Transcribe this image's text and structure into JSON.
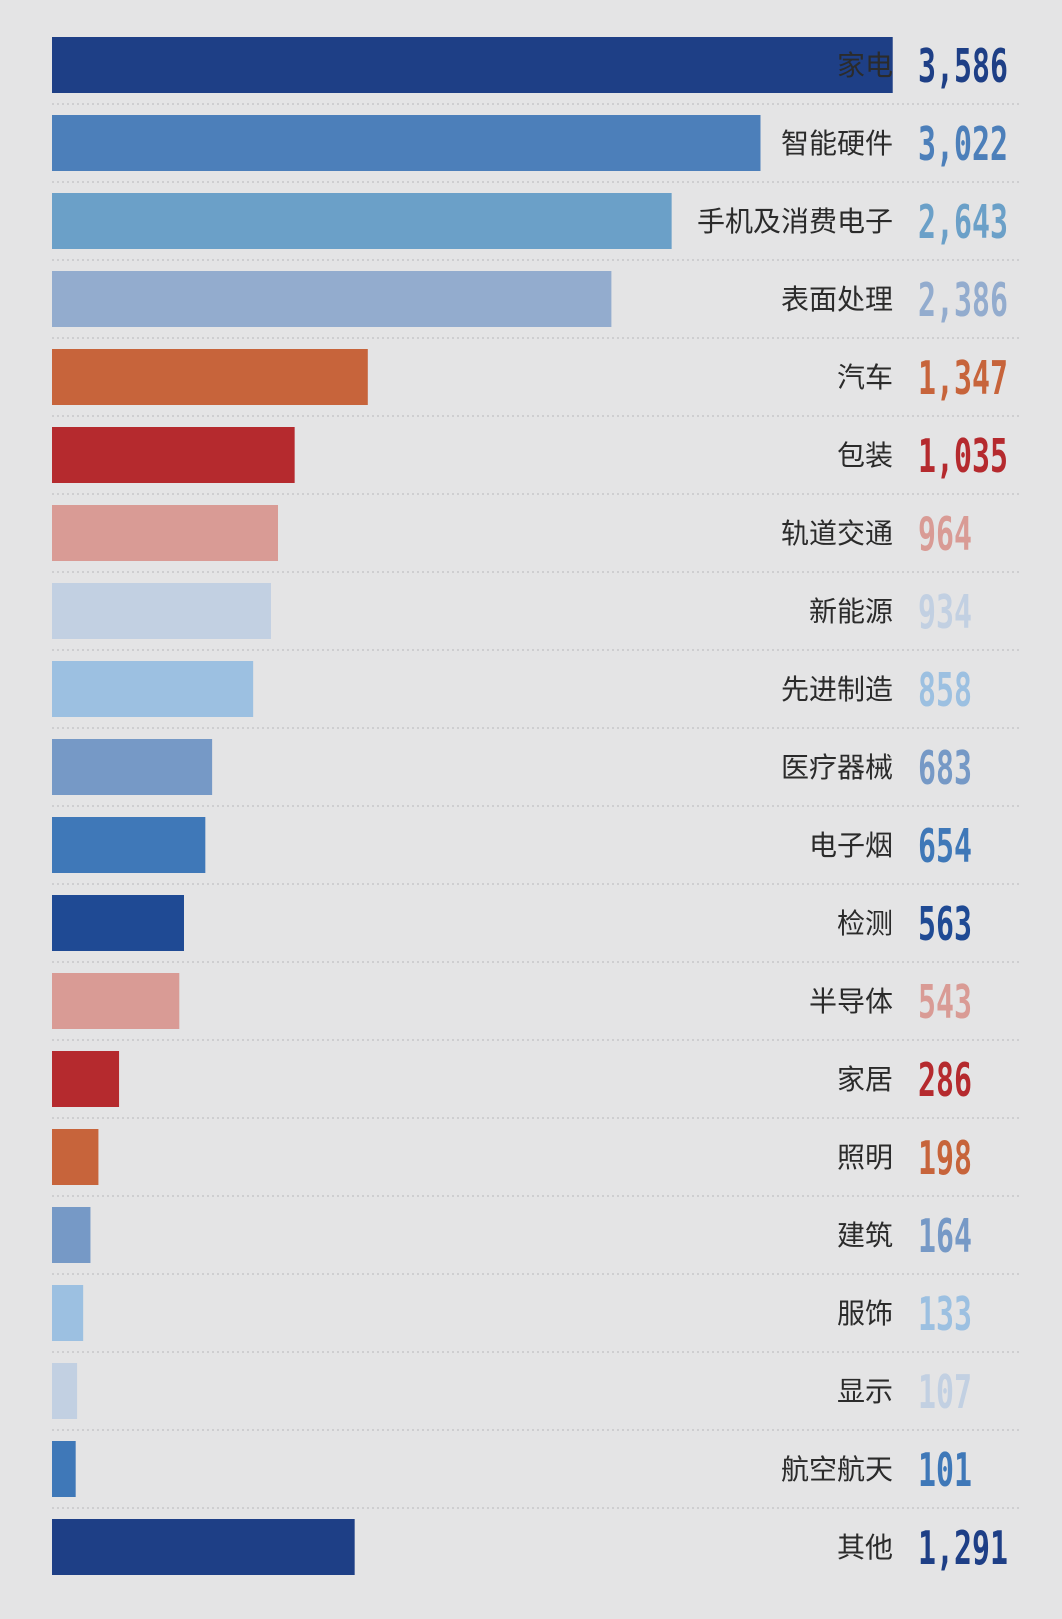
{
  "chart_data": {
    "type": "bar",
    "orientation": "horizontal",
    "title": "",
    "xlabel": "",
    "ylabel": "",
    "grid": "dotted horizontal separators",
    "legend": "none",
    "categories": [
      "家电",
      "智能硬件",
      "手机及消费电子",
      "表面处理",
      "汽车",
      "包装",
      "轨道交通",
      "新能源",
      "先进制造",
      "医疗器械",
      "电子烟",
      "检测",
      "半导体",
      "家居",
      "照明",
      "建筑",
      "服饰",
      "显示",
      "航空航天",
      "其他"
    ],
    "values": [
      3586,
      3022,
      2643,
      2386,
      1347,
      1035,
      964,
      934,
      858,
      683,
      654,
      563,
      543,
      286,
      198,
      164,
      133,
      107,
      101,
      1291
    ],
    "value_labels": [
      "3,586",
      "3,022",
      "2,643",
      "2,386",
      "1,347",
      "1,035",
      "964",
      "934",
      "858",
      "683",
      "654",
      "563",
      "543",
      "286",
      "198",
      "164",
      "133",
      "107",
      "101",
      "1,291"
    ],
    "colors": [
      "#1e3f86",
      "#4c7fba",
      "#6ba0c8",
      "#93acce",
      "#c7643b",
      "#b52a2e",
      "#d99b95",
      "#c2d0e2",
      "#9cc0e1",
      "#7699c6",
      "#3f78b8",
      "#1f4a94",
      "#d99b95",
      "#b52a2e",
      "#c7643b",
      "#7699c6",
      "#9cc0e1",
      "#c2d0e2",
      "#3f78b8",
      "#1e3f86"
    ],
    "xlim": [
      0,
      3600
    ]
  }
}
